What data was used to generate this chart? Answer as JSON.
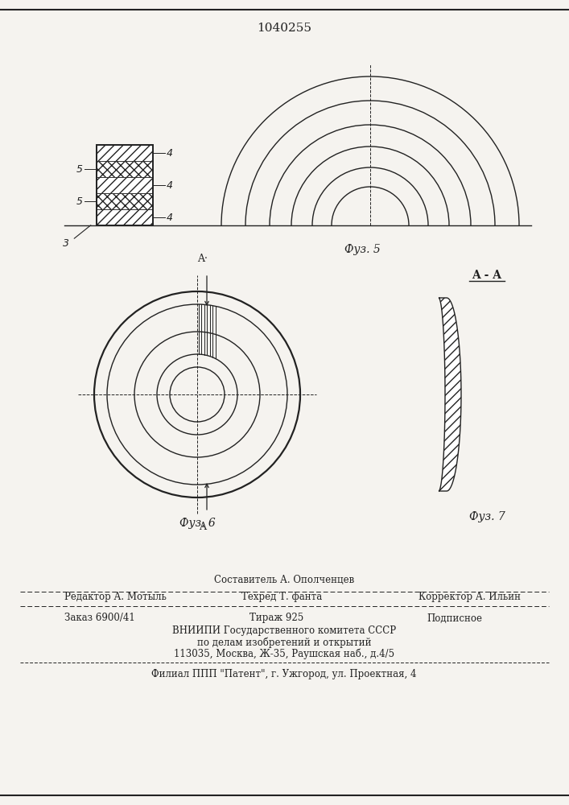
{
  "title": "1040255",
  "bg_color": "#f5f3ef",
  "line_color": "#222222",
  "fig5_caption": "Фуз. 5",
  "fig6_caption": "Фуз. 6",
  "fig7_caption": "Фуз. 7",
  "semicircle_radii": [
    185,
    155,
    125,
    98,
    72,
    48
  ],
  "ring_radii_outer": [
    128,
    112,
    78,
    50,
    34
  ],
  "footer": {
    "sestavitel": "Составитель А. Ополченцев",
    "redaktor": "Редактор А. Мотыль",
    "tehred": "Техред Т. фанта",
    "korrektor": "Корректор А. Ильин",
    "zakaz": "Заказ 6900/41",
    "tiraz": "Тираж 925",
    "podpisnoe": "Подписное",
    "vniipи1": "ВНИИПИ Государственного комитета СССР",
    "vniipи2": "по делам изобретений и открытий",
    "address": "113035, Москва, Ж-35, Раушская наб., д.4/5",
    "filial": "Филиал ППП \"Патент\", г. Ужгород, ул. Проектная, 4"
  }
}
